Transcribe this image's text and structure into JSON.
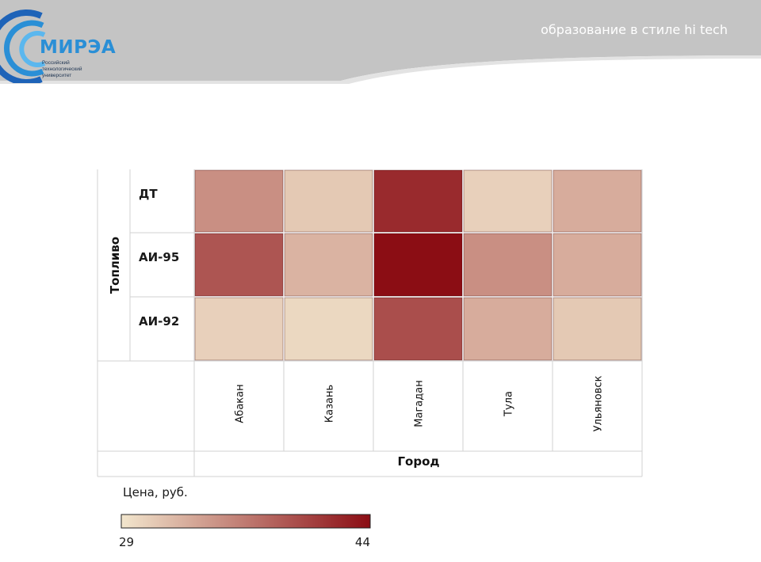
{
  "header": {
    "logo_text": "МИРЭА",
    "logo_subtitle": [
      "Российский",
      "технологический",
      "университет"
    ],
    "slogan": "образование в стиле hi tech"
  },
  "colors": {
    "header_gray": "#bdbdbd",
    "header_light": "#dcdcdc",
    "logo_blue": "#2a8fd6",
    "scale_low": "#f2e6cd",
    "scale_high": "#8b0d14"
  },
  "chart_data": {
    "type": "heatmap",
    "y_title": "Топливо",
    "x_title": "Город",
    "rows": [
      "ДТ",
      "АИ-95",
      "АИ-92"
    ],
    "columns": [
      "Абакан",
      "Казань",
      "Магадан",
      "Тула",
      "Ульяновск"
    ],
    "values": [
      [
        35,
        31,
        42,
        30.5,
        33
      ],
      [
        39,
        32.5,
        44,
        35,
        33
      ],
      [
        30.5,
        30,
        39.5,
        33,
        31
      ]
    ],
    "legend": {
      "title": "Цена, руб.",
      "min": 29,
      "max": 44,
      "min_label": "29",
      "max_label": "44"
    }
  }
}
